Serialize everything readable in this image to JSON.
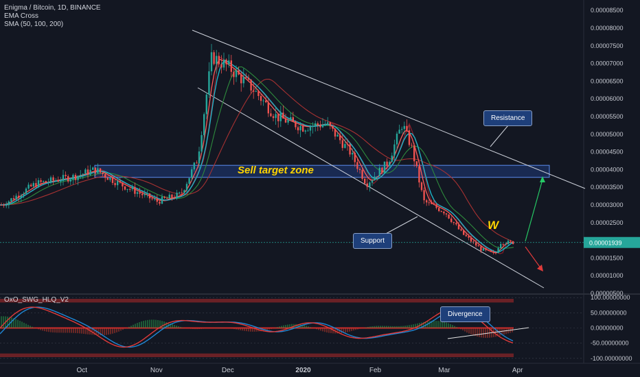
{
  "header": {
    "symbol_line": "Enigma / Bitcoin, 1D, BINANCE",
    "indicator_1": "EMA Cross",
    "indicator_2": "SMA (50, 100, 200)",
    "oscillator_name": "OxO_SWG_HLQ_V2"
  },
  "annotations": {
    "sell_zone": "Sell target zone",
    "resistance": "Resistance",
    "support": "Support",
    "divergence": "Divergence",
    "pattern": "W"
  },
  "colors": {
    "background": "#131722",
    "up_candle": "#26a69a",
    "down_candle": "#ef5350",
    "zone_fill": "#1f3a7a",
    "zone_border": "#5b8def",
    "label_box": "#1e3f7a",
    "current_price": "#26a69a",
    "zone_text": "#ffd400"
  },
  "chart_data": [
    {
      "type": "candlestick",
      "title": "Enigma / Bitcoin, 1D, BINANCE",
      "y_axis_ticks": [
        "0.00008500",
        "0.00008000",
        "0.00007500",
        "0.00007000",
        "0.00006500",
        "0.00006000",
        "0.00005500",
        "0.00005000",
        "0.00004500",
        "0.00004000",
        "0.00003500",
        "0.00003000",
        "0.00002500",
        "0.00002000",
        "0.00001500",
        "0.00001000",
        "0.00000500"
      ],
      "ylim": [
        5e-06,
        8.6e-05
      ],
      "x_axis_labels": [
        "Oct",
        "Nov",
        "Dec",
        "2020",
        "Feb",
        "Mar",
        "Apr"
      ],
      "current_price": "0.00001939",
      "close_path": [
        {
          "date": "2019-09-01",
          "close": 3e-05
        },
        {
          "date": "2019-09-15",
          "close": 3.6e-05
        },
        {
          "date": "2019-10-01",
          "close": 3.8e-05
        },
        {
          "date": "2019-10-10",
          "close": 4e-05
        },
        {
          "date": "2019-10-20",
          "close": 3.6e-05
        },
        {
          "date": "2019-11-05",
          "close": 3.1e-05
        },
        {
          "date": "2019-11-15",
          "close": 3.3e-05
        },
        {
          "date": "2019-11-22",
          "close": 4.3e-05
        },
        {
          "date": "2019-11-28",
          "close": 7.2e-05
        },
        {
          "date": "2019-12-05",
          "close": 6.9e-05
        },
        {
          "date": "2019-12-15",
          "close": 6.3e-05
        },
        {
          "date": "2019-12-25",
          "close": 5.5e-05
        },
        {
          "date": "2020-01-05",
          "close": 5.2e-05
        },
        {
          "date": "2020-01-15",
          "close": 5.3e-05
        },
        {
          "date": "2020-01-25",
          "close": 4.5e-05
        },
        {
          "date": "2020-02-01",
          "close": 3.6e-05
        },
        {
          "date": "2020-02-10",
          "close": 4.2e-05
        },
        {
          "date": "2020-02-16",
          "close": 5.3e-05
        },
        {
          "date": "2020-02-20",
          "close": 4.6e-05
        },
        {
          "date": "2020-02-25",
          "close": 3.1e-05
        },
        {
          "date": "2020-03-05",
          "close": 2.8e-05
        },
        {
          "date": "2020-03-12",
          "close": 2.2e-05
        },
        {
          "date": "2020-03-20",
          "close": 1.75e-05
        },
        {
          "date": "2020-03-26",
          "close": 1.6e-05
        },
        {
          "date": "2020-03-28",
          "close": 1.94e-05
        }
      ],
      "sell_target_zone": [
        3.78e-05,
        4.12e-05
      ],
      "series": [
        {
          "name": "EMA Cross"
        },
        {
          "name": "SMA (50, 100, 200)"
        }
      ]
    },
    {
      "type": "line",
      "title": "OxO_SWG_HLQ_V2",
      "y_axis_ticks": [
        "100.00000000",
        "50.00000000",
        "0.00000000",
        "-50.00000000",
        "-100.00000000"
      ],
      "ylim": [
        -105,
        105
      ]
    }
  ]
}
